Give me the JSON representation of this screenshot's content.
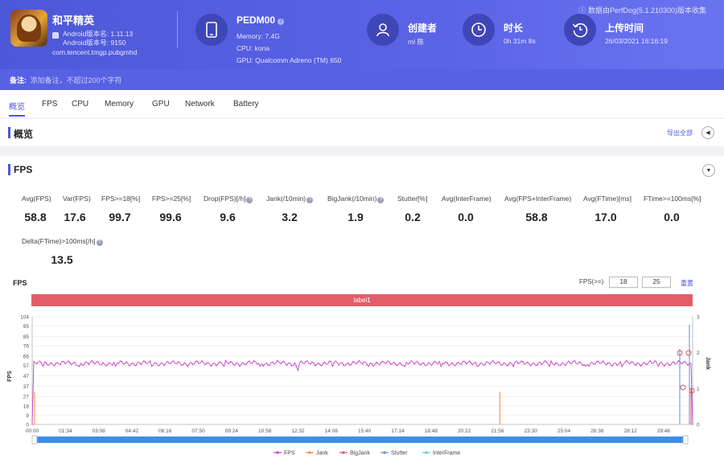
{
  "header": {
    "app_name": "和平精英",
    "version_name": "Android版本名: 1.11.13",
    "version_code": "Android版本号: 9150",
    "package": "com.tencent.tmgp.pubgmhd",
    "data_source": "数据由PerfDog(5.1.210300)版本收集",
    "device_name": "PEDM00",
    "memory": "Memory: 7.4G",
    "cpu": "CPU: kona",
    "gpu": "GPU: Qualcomm Adreno (TM) 650",
    "creator_title": "创建者",
    "creator_value": "ml 陈",
    "duration_title": "时长",
    "duration_value": "0h 31m 8s",
    "upload_title": "上传时间",
    "upload_value": "26/03/2021 16:16:19",
    "note_label": "备注:",
    "note_placeholder": "添加备注，不超过200个字符"
  },
  "tabs": [
    "概览",
    "FPS",
    "CPU",
    "Memory",
    "GPU",
    "Network",
    "Battery"
  ],
  "overview": {
    "title": "概览",
    "export_all": "导出全部"
  },
  "fps_section": {
    "title": "FPS",
    "metrics": [
      {
        "label": "Avg(FPS)",
        "value": "58.8"
      },
      {
        "label": "Var(FPS)",
        "value": "17.6"
      },
      {
        "label": "FPS>=18[%]",
        "value": "99.7"
      },
      {
        "label": "FPS>=25[%]",
        "value": "99.6"
      },
      {
        "label": "Drop(FPS)[/h]",
        "value": "9.6"
      },
      {
        "label": "Jank(/10min)",
        "value": "3.2"
      },
      {
        "label": "BigJank(/10min)",
        "value": "1.9"
      },
      {
        "label": "Stutter[%]",
        "value": "0.2"
      },
      {
        "label": "Avg(InterFrame)",
        "value": "0.0"
      },
      {
        "label": "Avg(FPS+InterFrame)",
        "value": "58.8"
      },
      {
        "label": "Avg(FTime)[ms]",
        "value": "17.0"
      },
      {
        "label": "FTime>=100ms[%]",
        "value": "0.0"
      },
      {
        "label": "Delta(FTime)>100ms[/h]",
        "value": "13.5"
      }
    ],
    "chart_title": "FPS",
    "fps_ge_label": "FPS(>=)",
    "threshold_1": "18",
    "threshold_2": "25",
    "reset_label": "重置",
    "label_bar": "label1"
  },
  "chart_data": {
    "type": "line",
    "title": "FPS",
    "ylabel": "FPS",
    "y2label": "Jank",
    "ylim": [
      0,
      104
    ],
    "y2lim": [
      0,
      3
    ],
    "y_ticks": [
      "0",
      "9",
      "18",
      "27",
      "37",
      "47",
      "57",
      "66",
      "76",
      "85",
      "95",
      "104"
    ],
    "y2_ticks": [
      "0",
      "1",
      "2",
      "3"
    ],
    "x_ticks": [
      "00:00",
      "01:34",
      "03:08",
      "04:42",
      "06:16",
      "07:50",
      "09:24",
      "10:58",
      "12:32",
      "14:06",
      "15:40",
      "17:14",
      "18:48",
      "20:22",
      "21:56",
      "23:30",
      "25:04",
      "26:38",
      "28:12",
      "29:46"
    ],
    "baseline_fps": 59,
    "fps_dips": [
      {
        "t": "00:00",
        "fps": 0
      },
      {
        "t": "12:32",
        "fps": 52
      },
      {
        "t": "31:08",
        "fps": 0
      }
    ],
    "jank_events": [
      {
        "t": "00:00",
        "jank": 1
      },
      {
        "t": "21:56",
        "jank": 1
      }
    ],
    "legend": [
      "FPS",
      "Jank",
      "BigJank",
      "Stutter",
      "InterFrame"
    ],
    "colors": {
      "FPS": "#c93fc6",
      "Jank": "#f08a3c",
      "BigJank": "#e05555",
      "Stutter": "#5b8fd8",
      "InterFrame": "#5bc8d8"
    }
  }
}
